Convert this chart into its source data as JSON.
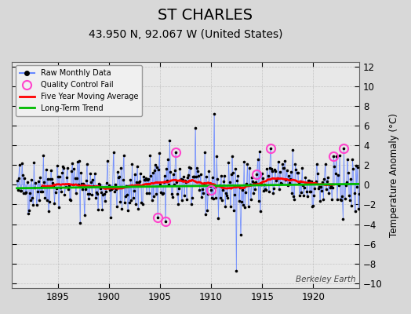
{
  "title": "ST CHARLES",
  "subtitle": "43.950 N, 92.067 W (United States)",
  "ylabel": "Temperature Anomaly (°C)",
  "watermark": "Berkeley Earth",
  "year_start": 1890.5,
  "year_end": 1924.5,
  "ylim": [
    -10.5,
    12.5
  ],
  "yticks": [
    -10,
    -8,
    -6,
    -4,
    -2,
    0,
    2,
    4,
    6,
    8,
    10,
    12
  ],
  "xticks": [
    1895,
    1900,
    1905,
    1910,
    1915,
    1920
  ],
  "bg_color": "#d8d8d8",
  "plot_bg_color": "#e8e8e8",
  "raw_line_color": "#6688ff",
  "raw_stem_color": "#8899ff",
  "raw_dot_color": "#000000",
  "moving_avg_color": "#ff0000",
  "trend_color": "#00bb00",
  "qc_fail_color": "#ff44cc",
  "title_fontsize": 14,
  "subtitle_fontsize": 10,
  "seed": 42,
  "raw_data": [],
  "qc_years": [
    1904.75,
    1905.5,
    1906.5,
    1910.0,
    1914.5,
    1915.8,
    1922.0,
    1923.0
  ],
  "qc_vals": [
    -3.3,
    -3.7,
    3.3,
    -0.5,
    1.1,
    3.7,
    2.9,
    3.7
  ],
  "spike_years": [
    1910.3,
    1912.5
  ],
  "spike_vals": [
    7.2,
    -8.7
  ]
}
